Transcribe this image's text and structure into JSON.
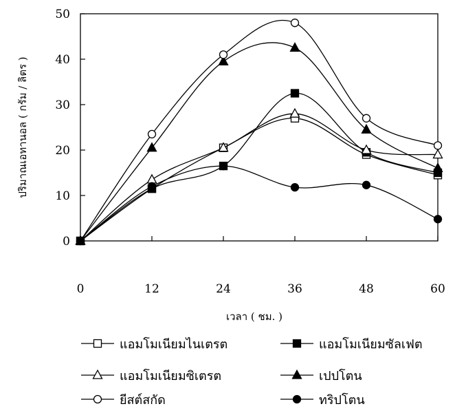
{
  "chart_data": {
    "type": "line",
    "title": "",
    "xlabel": "เวลา ( ชม. )",
    "ylabel": "ปริมาณเอทานอล ( กรัม / ลิตร )",
    "x": [
      0,
      12,
      24,
      36,
      48,
      60
    ],
    "xlim": [
      0,
      60
    ],
    "ylim": [
      0,
      50
    ],
    "xticks": [
      "0",
      "12",
      "24",
      "36",
      "48",
      "60"
    ],
    "yticks": [
      "0",
      "10",
      "20",
      "30",
      "40",
      "50"
    ],
    "grid": false,
    "legend_position": "bottom",
    "series": [
      {
        "name": "แอมโมเนียมไนเตรต",
        "marker": "open-square",
        "values": [
          0,
          11.5,
          20.5,
          27,
          19,
          14.5
        ]
      },
      {
        "name": "แอมโมเนียมซัลเฟต",
        "marker": "filled-square",
        "values": [
          0,
          11.5,
          16.5,
          32.5,
          19.5,
          15
        ]
      },
      {
        "name": "แอมโมเนียมซิเตรต",
        "marker": "open-triangle",
        "values": [
          0,
          13.5,
          20.5,
          28,
          20,
          19
        ]
      },
      {
        "name": "เปปโตน",
        "marker": "filled-triangle",
        "values": [
          0,
          20.5,
          39.5,
          42.5,
          24.5,
          16
        ]
      },
      {
        "name": "ยีสต์สกัด",
        "marker": "open-circle",
        "values": [
          0,
          23.5,
          41,
          48,
          27,
          21
        ]
      },
      {
        "name": "ทริปโตน",
        "marker": "filled-circle",
        "values": [
          0,
          12,
          16.5,
          11.8,
          12.3,
          4.8
        ]
      }
    ]
  }
}
